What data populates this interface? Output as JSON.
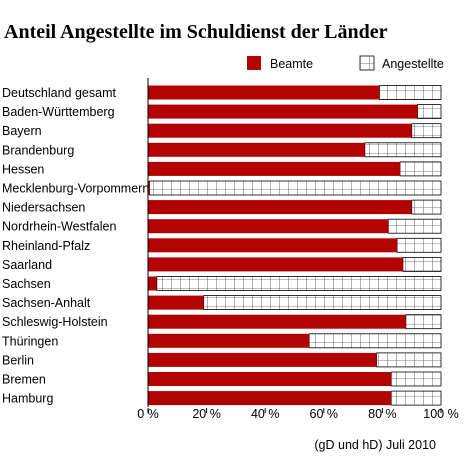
{
  "chart_data": {
    "type": "bar",
    "orientation": "horizontal",
    "stacked": true,
    "title": "Anteil Angestellte im Schuldienst der Länder",
    "source": "(gD und hD) Juli 2010",
    "xlim": [
      0,
      100
    ],
    "ticks": [
      "0 %",
      "20 %",
      "40 %",
      "60 %",
      "80 %",
      "100 %"
    ],
    "tick_values": [
      0,
      20,
      40,
      60,
      80,
      100
    ],
    "legend_position": "top-right",
    "categories": [
      "Deutschland gesamt",
      "Baden-Württemberg",
      "Bayern",
      "Brandenburg",
      "Hessen",
      "Mecklenburg-Vorpommern",
      "Niedersachsen",
      "Nordrhein-Westfalen",
      "Rheinland-Pfalz",
      "Saarland",
      "Sachsen",
      "Sachsen-Anhalt",
      "Schleswig-Holstein",
      "Thüringen",
      "Berlin",
      "Bremen",
      "Hamburg"
    ],
    "series": [
      {
        "name": "Beamte",
        "color": "#b30000",
        "values": [
          79,
          92,
          90,
          74,
          86,
          0.5,
          90,
          82,
          85,
          87,
          3,
          19,
          88,
          55,
          78,
          83,
          83
        ]
      },
      {
        "name": "Angestellte",
        "color": "#ffffff",
        "values": [
          21,
          8,
          10,
          26,
          14,
          99.5,
          10,
          18,
          15,
          13,
          97,
          81,
          12,
          45,
          22,
          17,
          17
        ]
      }
    ]
  }
}
